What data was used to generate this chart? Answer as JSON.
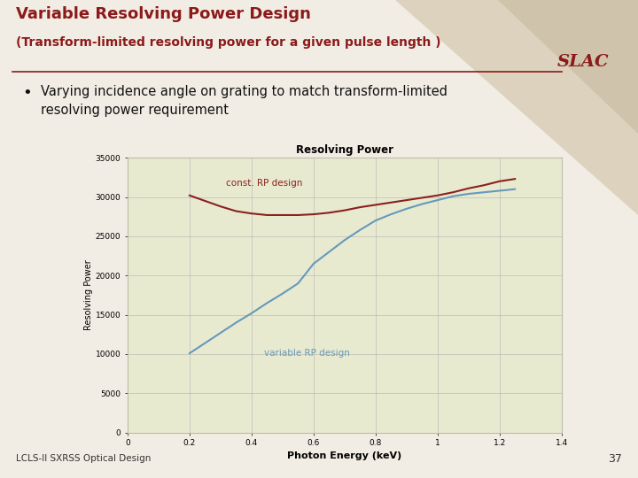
{
  "slide_title": "Variable Resolving Power Design",
  "slide_subtitle": "(Transform-limited resolving power for a given pulse length )",
  "bullet_text": "Varying incidence angle on grating to match transform-limited\nresolving power requirement",
  "chart_title": "Resolving Power",
  "xlabel": "Photon Energy (keV)",
  "ylabel": "Resolving Power",
  "xlim": [
    0,
    1.4
  ],
  "ylim": [
    0,
    35000
  ],
  "xticks": [
    0,
    0.2,
    0.4,
    0.6,
    0.8,
    1.0,
    1.2,
    1.4
  ],
  "yticks": [
    0,
    5000,
    10000,
    15000,
    20000,
    25000,
    30000,
    35000
  ],
  "ytick_labels": [
    "0",
    "5000",
    "10000",
    "15000",
    "20000",
    "25000",
    "30000",
    "35000"
  ],
  "const_rp_label": "const. RP design",
  "var_rp_label": "variable RP design",
  "const_rp_color": "#8B2020",
  "var_rp_color": "#6699BB",
  "slide_bg": "#F2EDE4",
  "chart_bg": "#E8EAD0",
  "chart_border": "#BBBBAA",
  "title_color": "#8B1A1A",
  "bullet_color": "#111111",
  "footer_text": "LCLS-II SXRSS Optical Design",
  "page_number": "37",
  "slac_color": "#8B1A1A",
  "grid_color": "#AAAAAA",
  "line_under_title_color": "#8B1A1A",
  "tri_color": "#C8B89A",
  "const_rp_x": [
    0.2,
    0.25,
    0.3,
    0.35,
    0.4,
    0.45,
    0.5,
    0.55,
    0.6,
    0.65,
    0.7,
    0.75,
    0.8,
    0.85,
    0.9,
    0.95,
    1.0,
    1.05,
    1.1,
    1.15,
    1.2,
    1.25
  ],
  "const_rp_y": [
    30200,
    29500,
    28800,
    28200,
    27900,
    27700,
    27700,
    27700,
    27800,
    28000,
    28300,
    28700,
    29000,
    29300,
    29600,
    29900,
    30200,
    30600,
    31100,
    31500,
    32000,
    32300
  ],
  "var_rp_x": [
    0.2,
    0.25,
    0.3,
    0.35,
    0.4,
    0.45,
    0.5,
    0.55,
    0.6,
    0.65,
    0.7,
    0.75,
    0.8,
    0.85,
    0.9,
    0.95,
    1.0,
    1.05,
    1.1,
    1.15,
    1.2,
    1.25
  ],
  "var_rp_y": [
    10100,
    11400,
    12700,
    14000,
    15200,
    16500,
    17700,
    19000,
    21500,
    23000,
    24500,
    25800,
    27000,
    27800,
    28500,
    29100,
    29600,
    30100,
    30400,
    30600,
    30800,
    31000
  ]
}
